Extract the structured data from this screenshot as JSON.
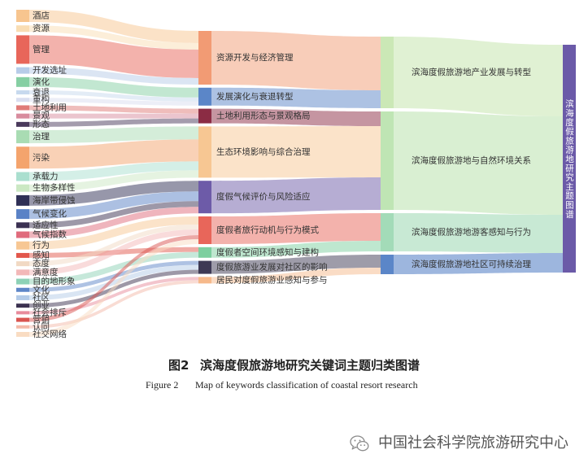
{
  "sankey": {
    "type": "sankey",
    "root": {
      "label": "滨海度假旅游地研究主题图谱",
      "color": "#6b5aa8"
    },
    "themes": [
      {
        "label": "滨海度假旅游地产业发展与转型",
        "color": "#cbe8b6"
      },
      {
        "label": "滨海度假旅游地与自然环境关系",
        "color": "#bfe5b4"
      },
      {
        "label": "滨海度假旅游地游客感知与行为",
        "color": "#a3dbb8"
      },
      {
        "label": "滨海度假旅游地社区可持续治理",
        "color": "#5b86c8"
      }
    ],
    "topics": [
      {
        "label": "资源开发与经济管理",
        "color": "#f29b74",
        "theme": 0
      },
      {
        "label": "发展演化与衰退转型",
        "color": "#5b86c8",
        "theme": 0
      },
      {
        "label": "土地利用形态与景观格局",
        "color": "#8b2c44",
        "theme": 1
      },
      {
        "label": "生态环境影响与综合治理",
        "color": "#f7c793",
        "theme": 1
      },
      {
        "label": "度假气候评价与风险适应",
        "color": "#6d5ba8",
        "theme": 1
      },
      {
        "label": "度假者旅行动机与行为模式",
        "color": "#e8665a",
        "theme": 2
      },
      {
        "label": "度假者空间环境感知与建构",
        "color": "#7dcf9f",
        "theme": 2
      },
      {
        "label": "度假旅游业发展对社区的影响",
        "color": "#3d3954",
        "theme": 3
      },
      {
        "label": "居民对度假旅游业感知与参与",
        "color": "#f6b98b",
        "theme": 3
      }
    ],
    "keywords": [
      {
        "label": "酒店",
        "color": "#f7c58f",
        "topic": 0,
        "value": 15
      },
      {
        "label": "资源",
        "color": "#f9ddb3",
        "topic": 0,
        "value": 8
      },
      {
        "label": "管理",
        "color": "#e8665a",
        "topic": 0,
        "value": 35
      },
      {
        "label": "开发选址",
        "color": "#b7cce8",
        "topic": 0,
        "value": 8
      },
      {
        "label": "演化",
        "color": "#86cfa3",
        "topic": 1,
        "value": 12
      },
      {
        "label": "衰退",
        "color": "#c7d9ee",
        "topic": 1,
        "value": 5
      },
      {
        "label": "重构",
        "color": "#d9def0",
        "topic": 1,
        "value": 5
      },
      {
        "label": "土地利用",
        "color": "#e07b78",
        "topic": 2,
        "value": 6
      },
      {
        "label": "景观",
        "color": "#d88c9e",
        "topic": 2,
        "value": 6
      },
      {
        "label": "形态",
        "color": "#4a3a5c",
        "topic": 2,
        "value": 6
      },
      {
        "label": "治理",
        "color": "#a9dcb3",
        "topic": 3,
        "value": 16
      },
      {
        "label": "污染",
        "color": "#f4a46d",
        "topic": 3,
        "value": 27
      },
      {
        "label": "承载力",
        "color": "#aadfcf",
        "topic": 3,
        "value": 11
      },
      {
        "label": "生物多样性",
        "color": "#cbe8c3",
        "topic": 3,
        "value": 9
      },
      {
        "label": "海岸带侵蚀",
        "color": "#2f3056",
        "topic": 4,
        "value": 13
      },
      {
        "label": "气候变化",
        "color": "#5a82c6",
        "topic": 4,
        "value": 12
      },
      {
        "label": "适应性",
        "color": "#3b3152",
        "topic": 4,
        "value": 7
      },
      {
        "label": "气候指数",
        "color": "#e06b7c",
        "topic": 4,
        "value": 8
      },
      {
        "label": "行为",
        "color": "#f7c794",
        "topic": 5,
        "value": 10
      },
      {
        "label": "感知",
        "color": "#e2574c",
        "topic": 6,
        "value": 6
      },
      {
        "label": "态度",
        "color": "#f1d9c3",
        "topic": 5,
        "value": 6
      },
      {
        "label": "满意度",
        "color": "#f3b8b8",
        "topic": 5,
        "value": 7
      },
      {
        "label": "目的地形象",
        "color": "#8dd1b6",
        "topic": 6,
        "value": 7
      },
      {
        "label": "文化",
        "color": "#5e86c8",
        "topic": 7,
        "value": 5
      },
      {
        "label": "社区",
        "color": "#b4cbe8",
        "topic": 7,
        "value": 6
      },
      {
        "label": "创业",
        "color": "#3b3150",
        "topic": 7,
        "value": 5
      },
      {
        "label": "社会排斥",
        "color": "#e88b9b",
        "topic": 8,
        "value": 4
      },
      {
        "label": "营销",
        "color": "#d95450",
        "topic": 5,
        "value": 5
      },
      {
        "label": "认同",
        "color": "#f4b9a9",
        "topic": 8,
        "value": 4
      },
      {
        "label": "社交网络",
        "color": "#f9dcc2",
        "topic": 5,
        "value": 6
      }
    ]
  },
  "caption": {
    "zh_label": "图2",
    "zh_title": "滨海度假旅游地研究关键词主题归类图谱",
    "en_label": "Figure 2",
    "en_title": "Map of keywords classification of coastal resort research"
  },
  "watermark": {
    "icon": "wechat-icon",
    "text": "中国社会科学院旅游研究中心"
  }
}
